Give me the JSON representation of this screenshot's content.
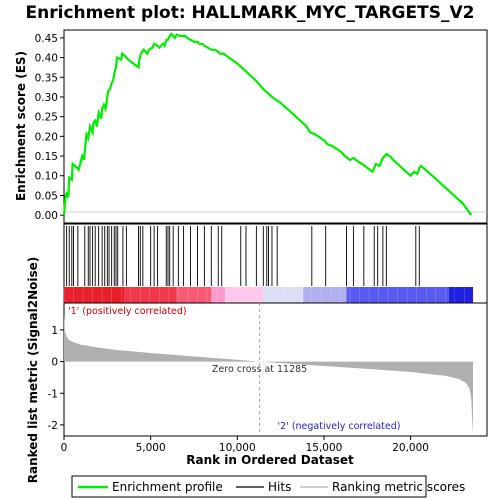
{
  "chart_data": [
    {
      "type": "line",
      "title": "Enrichment plot: HALLMARK_MYC_TARGETS_V2",
      "ylabel": "Enrichment score (ES)",
      "xlim": [
        0,
        23600
      ],
      "ylim": [
        -0.02,
        0.47
      ],
      "y_ticks": [
        "0.00",
        "0.05",
        "0.10",
        "0.15",
        "0.20",
        "0.25",
        "0.30",
        "0.35",
        "0.40",
        "0.45"
      ],
      "grid": false,
      "series": [
        {
          "name": "Enrichment profile",
          "color": "#00ee00",
          "x": [
            0,
            100,
            150,
            250,
            300,
            450,
            500,
            750,
            850,
            1050,
            1150,
            1300,
            1400,
            1500,
            1650,
            1700,
            1800,
            1900,
            2000,
            2150,
            2200,
            2300,
            2400,
            2500,
            2550,
            2650,
            2750,
            2850,
            2900,
            3000,
            3050,
            3300,
            3350,
            3500,
            3700,
            4000,
            4300,
            4350,
            4400,
            4500,
            4600,
            4800,
            4900,
            5100,
            5200,
            5400,
            5500,
            5700,
            5800,
            5900,
            6000,
            6100,
            6200,
            6400,
            6500,
            6700,
            6800,
            7000,
            7100,
            7300,
            7500,
            7700,
            7800,
            8000,
            8100,
            8300,
            8500,
            8700,
            8900,
            9000,
            9200,
            10000,
            10500,
            11000,
            11500,
            12000,
            12500,
            13000,
            13500,
            14000,
            14200,
            14500,
            15000,
            15200,
            15500,
            16000,
            16200,
            16500,
            16700,
            17000,
            17200,
            17500,
            17800,
            18000,
            18200,
            18400,
            18500,
            18600,
            18800,
            19000,
            19500,
            20000,
            20200,
            20400,
            20500,
            20600,
            21000,
            22000,
            23000,
            23500
          ],
          "values": [
            0.0,
            0.05,
            0.055,
            0.045,
            0.095,
            0.09,
            0.13,
            0.12,
            0.115,
            0.15,
            0.14,
            0.205,
            0.195,
            0.225,
            0.21,
            0.235,
            0.24,
            0.225,
            0.26,
            0.245,
            0.27,
            0.28,
            0.27,
            0.3,
            0.315,
            0.32,
            0.335,
            0.345,
            0.36,
            0.375,
            0.4,
            0.395,
            0.41,
            0.405,
            0.395,
            0.385,
            0.375,
            0.395,
            0.405,
            0.415,
            0.42,
            0.41,
            0.42,
            0.425,
            0.435,
            0.43,
            0.425,
            0.435,
            0.43,
            0.445,
            0.445,
            0.455,
            0.46,
            0.45,
            0.458,
            0.455,
            0.455,
            0.455,
            0.45,
            0.445,
            0.44,
            0.44,
            0.435,
            0.435,
            0.43,
            0.425,
            0.42,
            0.42,
            0.415,
            0.41,
            0.41,
            0.385,
            0.365,
            0.345,
            0.32,
            0.3,
            0.285,
            0.265,
            0.245,
            0.225,
            0.21,
            0.205,
            0.19,
            0.18,
            0.175,
            0.16,
            0.15,
            0.14,
            0.145,
            0.135,
            0.13,
            0.12,
            0.11,
            0.13,
            0.125,
            0.145,
            0.15,
            0.155,
            0.15,
            0.14,
            0.12,
            0.1,
            0.11,
            0.105,
            0.12,
            0.125,
            0.11,
            0.07,
            0.03,
            0.0
          ]
        }
      ]
    },
    {
      "type": "heatmap",
      "hits_label": "Hits",
      "hit_positions": [
        150,
        300,
        450,
        550,
        800,
        1200,
        1400,
        1500,
        1650,
        1800,
        2000,
        2200,
        2350,
        2500,
        2600,
        2750,
        2900,
        3000,
        3100,
        3400,
        3600,
        4300,
        4400,
        4550,
        5000,
        5200,
        5400,
        5900,
        6000,
        6100,
        6300,
        6600,
        6900,
        7300,
        7700,
        8100,
        8500,
        8900,
        9100,
        10200,
        10500,
        11100,
        11500,
        11700,
        11800,
        12000,
        12300,
        14300,
        15100,
        16300,
        16700,
        17300,
        17900,
        18100,
        18400,
        18600,
        20300,
        20500
      ],
      "band_colors": [
        "#e8202a",
        "#f0384a",
        "#f85a74",
        "#ff9acc",
        "#ffc8ec",
        "#dcdcf4",
        "#b0b0f0",
        "#5a5af0",
        "#2020e0"
      ],
      "band_bounds": [
        0,
        3500,
        6500,
        8500,
        9300,
        11500,
        13800,
        16300,
        22200,
        23600
      ]
    },
    {
      "type": "area",
      "xlabel": "Rank in Ordered Dataset",
      "ylabel": "Ranked list metric (Signal2Noise)",
      "xlim": [
        0,
        23600
      ],
      "ylim": [
        -2.35,
        1.85
      ],
      "x_ticks": [
        "0",
        "5,000",
        "10,000",
        "15,000",
        "20,000"
      ],
      "x_tick_values": [
        0,
        5000,
        10000,
        15000,
        20000
      ],
      "y_ticks": [
        "-2",
        "-1",
        "0",
        "1"
      ],
      "y_tick_values": [
        -2,
        -1,
        0,
        1
      ],
      "series": [
        {
          "name": "Ranking metric scores",
          "color": "#b0b0b0",
          "x": [
            0,
            50,
            150,
            300,
            600,
            1000,
            2000,
            3000,
            5000,
            8000,
            10000,
            11285,
            13000,
            15000,
            18000,
            20000,
            22000,
            22800,
            23200,
            23400,
            23500,
            23550,
            23600
          ],
          "values": [
            1.5,
            0.95,
            0.78,
            0.68,
            0.6,
            0.53,
            0.44,
            0.37,
            0.27,
            0.14,
            0.06,
            0.0,
            -0.07,
            -0.14,
            -0.25,
            -0.33,
            -0.45,
            -0.55,
            -0.68,
            -0.85,
            -1.2,
            -1.8,
            -2.25
          ]
        }
      ],
      "annotations": {
        "zero_cross": "Zero cross at 11285",
        "zero_cross_x": 11285,
        "pos_label": "'1' (positively correlated)",
        "neg_label": "'2' (negatively correlated)"
      }
    }
  ],
  "legend": {
    "placement": "bottom",
    "items": [
      {
        "label": "Enrichment profile",
        "color": "#00ee00"
      },
      {
        "label": "Hits",
        "color": "#000000"
      },
      {
        "label": "Ranking metric scores",
        "color": "#b0b0b0"
      }
    ]
  }
}
